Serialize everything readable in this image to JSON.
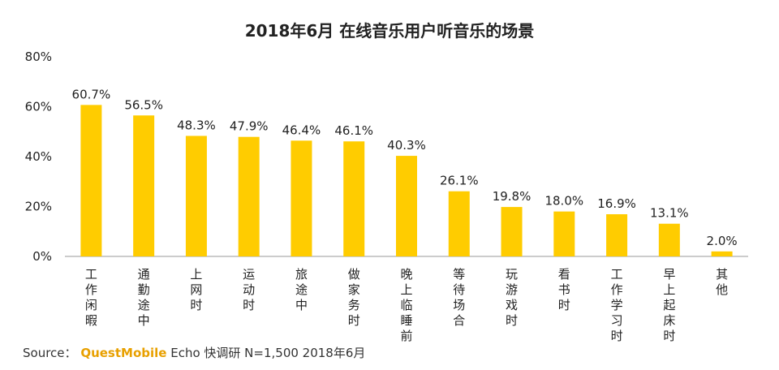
{
  "colors": {
    "bar": "#FFCC00",
    "text": "#222222",
    "axis": "#999999",
    "brand": "#E8A000"
  },
  "source": {
    "prefix": "Source：",
    "brand": "QuestMobile",
    "rest": " Echo 快调研 N=1,500 2018年6月"
  },
  "chart_data": {
    "type": "bar",
    "title": "2018年6月 在线音乐用户听音乐的场景",
    "categories": [
      "工作闲暇",
      "通勤途中",
      "上网时",
      "运动时",
      "旅途中",
      "做家务时",
      "晚上临睡前",
      "等待场合",
      "玩游戏时",
      "看书时",
      "工作学习时",
      "早上起床时",
      "其他"
    ],
    "values": [
      60.7,
      56.5,
      48.3,
      47.9,
      46.4,
      46.1,
      40.3,
      26.1,
      19.8,
      18.0,
      16.9,
      13.1,
      2.0
    ],
    "data_labels": [
      "60.7%",
      "56.5%",
      "48.3%",
      "47.9%",
      "46.4%",
      "46.1%",
      "40.3%",
      "26.1%",
      "19.8%",
      "18.0%",
      "16.9%",
      "13.1%",
      "2.0%"
    ],
    "yticks": [
      0,
      20,
      40,
      60,
      80
    ],
    "ytick_labels": [
      "0%",
      "20%",
      "40%",
      "60%",
      "80%"
    ],
    "ylim": [
      0,
      80
    ],
    "xlabel": "",
    "ylabel": "",
    "grid": false,
    "legend": "none"
  }
}
